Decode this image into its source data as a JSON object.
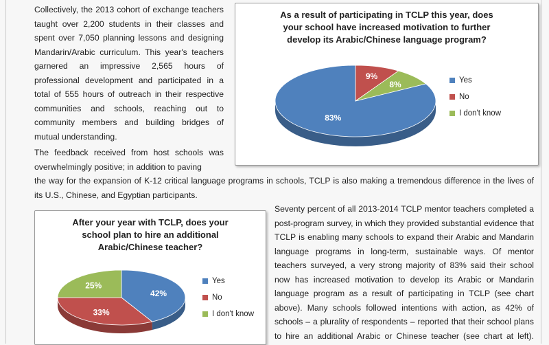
{
  "paragraphs": {
    "p1": "Collectively, the 2013 cohort of exchange teachers taught over 2,200 students in their classes and spent over 7,050 planning lessons and designing Mandarin/Arabic curriculum. This year's teachers garnered an impressive 2,565 hours of professional development and participated in a total of 555 hours of outreach in their respective communities and schools, reaching out to community members and building bridges of mutual understanding.",
    "p2a": "The feedback received from host schools was overwhelmingly positive; in addition to paving",
    "p2b": "the way for the expansion of K-12 critical language programs in schools, TCLP is also making a tremendous difference in the lives of its U.S., Chinese, and Egyptian participants.",
    "p3": "Seventy percent of all 2013-2014 TCLP mentor teachers completed a post-program survey, in which they provided substantial evidence that TCLP is enabling many schools to expand their Arabic and Mandarin language programs in long-term, sustainable ways. Of mentor teachers surveyed, a very strong majority of 83% said their school now has increased motivation to develop its Arabic or Mandarin language program as a result of participating in TCLP (see chart above). Many schools followed intentions with action, as 42% of schools – a plurality of respondents – reported that their school plans to hire an additional Arabic or Chinese teacher (see chart at left). These two figures"
  },
  "charts": {
    "c1": {
      "title_lines": [
        "As a result of participating in TCLP this year, does",
        "your school have increased motivation to further",
        "develop its Arabic/Chinese language program?"
      ]
    },
    "c2": {
      "title_lines": [
        "After your year with TCLP, does your",
        "school plan to hire an additional",
        "Arabic/Chinese teacher?"
      ]
    }
  },
  "chart_data": [
    {
      "type": "pie",
      "title": "As a result of participating in TCLP this year, does your school have increased motivation to further develop its Arabic/Chinese language program?",
      "categories": [
        "Yes",
        "No",
        "I don't know"
      ],
      "values": [
        83,
        9,
        8
      ],
      "labels": [
        "83%",
        "9%",
        "8%"
      ],
      "colors": [
        "#4f81bd",
        "#c0504d",
        "#9bbb59"
      ],
      "legend": "right"
    },
    {
      "type": "pie",
      "title": "After your year with TCLP, does your school plan to hire an additional Arabic/Chinese teacher?",
      "categories": [
        "Yes",
        "No",
        "I don't know"
      ],
      "values": [
        42,
        33,
        25
      ],
      "labels": [
        "42%",
        "33%",
        "25%"
      ],
      "colors": [
        "#4f81bd",
        "#c0504d",
        "#9bbb59"
      ],
      "legend": "right"
    }
  ]
}
